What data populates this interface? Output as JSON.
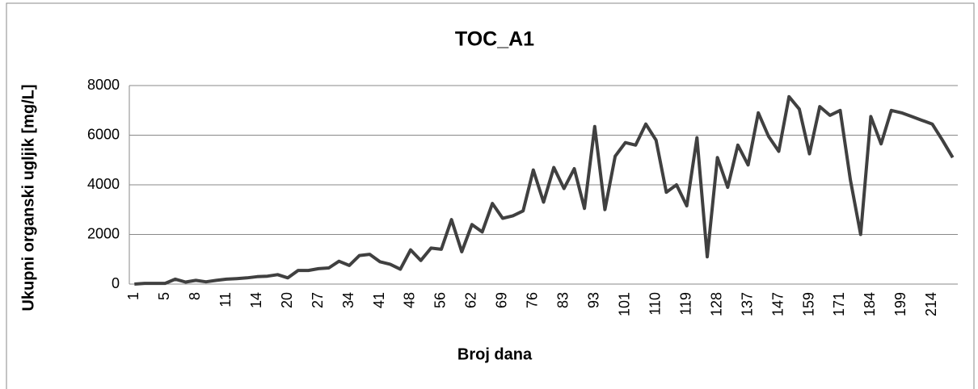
{
  "chart_data": {
    "type": "line",
    "title": "TOC_A1",
    "x_label": "Broj dana",
    "y_label": "Ukupni organski ugljik [mg/L]",
    "categories": [
      "1",
      null,
      null,
      "5",
      null,
      null,
      "8",
      null,
      null,
      "11",
      null,
      null,
      "14",
      null,
      null,
      "20",
      null,
      null,
      "27",
      null,
      null,
      "34",
      null,
      null,
      "41",
      null,
      null,
      "48",
      null,
      null,
      "56",
      null,
      null,
      "62",
      null,
      null,
      "69",
      null,
      null,
      "76",
      null,
      null,
      "83",
      null,
      null,
      "93",
      null,
      null,
      "101",
      null,
      null,
      "110",
      null,
      null,
      "119",
      null,
      null,
      "128",
      null,
      null,
      "137",
      null,
      null,
      "147",
      null,
      null,
      "159",
      null,
      null,
      "171",
      null,
      null,
      "184",
      null,
      null,
      "199",
      null,
      null,
      "214",
      null,
      null
    ],
    "series": [
      {
        "name": "TOC_A1",
        "color": "#404040",
        "values": [
          0,
          30,
          30,
          30,
          200,
          80,
          150,
          90,
          150,
          200,
          220,
          250,
          300,
          320,
          380,
          250,
          550,
          550,
          620,
          650,
          920,
          750,
          1150,
          1200,
          900,
          800,
          600,
          1380,
          950,
          1450,
          1400,
          2600,
          1300,
          2400,
          2100,
          3250,
          2650,
          2750,
          2950,
          4600,
          3300,
          4700,
          3850,
          4650,
          3050,
          6350,
          3000,
          5150,
          5700,
          5600,
          6450,
          5800,
          3700,
          4000,
          3150,
          5900,
          1100,
          5100,
          3900,
          5600,
          4800,
          6900,
          5950,
          5350,
          7550,
          7050,
          5250,
          7150,
          6800,
          7000,
          4200,
          2000,
          6750,
          5650,
          7000,
          6900,
          6750,
          6600,
          6450,
          5800,
          5100
        ]
      }
    ],
    "ylim": [
      0,
      8000
    ],
    "yticks": [
      0,
      2000,
      4000,
      6000,
      8000
    ],
    "grid": true
  }
}
